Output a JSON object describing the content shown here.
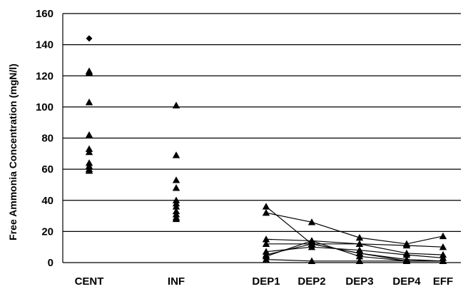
{
  "chart_data": {
    "type": "scatter",
    "title": "",
    "xlabel": "",
    "ylabel": "Free Ammonia Concentration (mgN/l)",
    "ylim": [
      0,
      160
    ],
    "yticks": [
      0,
      20,
      40,
      60,
      80,
      100,
      120,
      140,
      160
    ],
    "grid": "horizontal",
    "categories": [
      "CENT",
      "INF",
      "DEP1",
      "DEP2",
      "DEP3",
      "DEP4",
      "EFF"
    ],
    "scatter_points": [
      {
        "category": "CENT",
        "marker": "diamond",
        "values": [
          144
        ]
      },
      {
        "category": "CENT",
        "marker": "triangle",
        "values": [
          123,
          122,
          103,
          82,
          73,
          71,
          64,
          62,
          60,
          59
        ]
      },
      {
        "category": "INF",
        "marker": "triangle",
        "values": [
          101,
          69,
          53,
          48,
          40,
          38,
          36,
          33,
          31,
          29,
          28
        ]
      }
    ],
    "series": [
      {
        "values": [
          36,
          12,
          6,
          1,
          1
        ]
      },
      {
        "values": [
          32,
          26,
          16,
          12,
          17
        ]
      },
      {
        "values": [
          15,
          14,
          12,
          11,
          10
        ]
      },
      {
        "values": [
          12,
          12,
          12,
          6,
          5
        ]
      },
      {
        "values": [
          7,
          10,
          8,
          5,
          3
        ]
      },
      {
        "values": [
          5,
          12,
          6,
          2,
          1
        ]
      },
      {
        "values": [
          4,
          14,
          4,
          1,
          1
        ]
      },
      {
        "values": [
          2,
          1,
          1,
          1,
          1
        ]
      }
    ]
  }
}
